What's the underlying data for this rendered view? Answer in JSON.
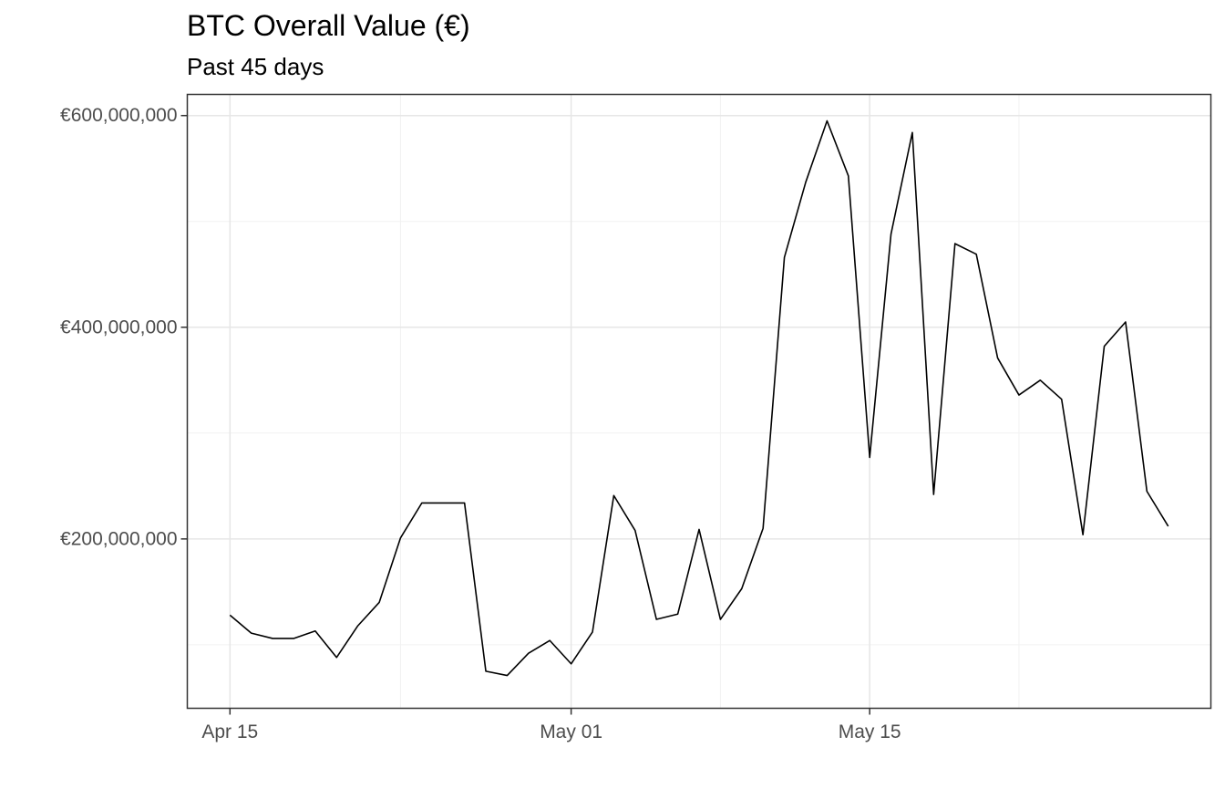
{
  "chart_data": {
    "type": "line",
    "title": "BTC Overall Value (€)",
    "subtitle": "Past 45 days",
    "xlabel": "",
    "ylabel": "",
    "x_start": "2025-04-15",
    "x_end": "2025-05-29",
    "xlim": [
      "2025-04-13",
      "2025-05-31"
    ],
    "ylim": [
      40000000,
      620000000
    ],
    "x_ticks": [
      {
        "date": "2025-04-15",
        "label": "Apr 15"
      },
      {
        "date": "2025-05-01",
        "label": "May 01"
      },
      {
        "date": "2025-05-15",
        "label": "May 15"
      }
    ],
    "x_minor_ticks": [
      "2025-04-23",
      "2025-05-08",
      "2025-05-22"
    ],
    "y_ticks": [
      {
        "value": 200000000,
        "label": "€200,000,000"
      },
      {
        "value": 400000000,
        "label": "€400,000,000"
      },
      {
        "value": 600000000,
        "label": "€600,000,000"
      }
    ],
    "y_minor_ticks": [
      100000000,
      300000000,
      500000000
    ],
    "grid": true,
    "line_color": "#000000",
    "series": [
      {
        "values": [
          128000000,
          111000000,
          106000000,
          106000000,
          113000000,
          88000000,
          118000000,
          140000000,
          201000000,
          234000000,
          234000000,
          234000000,
          75000000,
          71000000,
          92000000,
          104000000,
          82000000,
          112000000,
          241000000,
          208000000,
          124000000,
          129000000,
          209000000,
          124000000,
          153000000,
          210000000,
          466000000,
          537000000,
          595000000,
          543000000,
          277000000,
          488000000,
          584000000,
          242000000,
          479000000,
          469000000,
          371000000,
          336000000,
          350000000,
          332000000,
          204000000,
          382000000,
          405000000,
          245000000,
          212000000
        ]
      }
    ]
  }
}
